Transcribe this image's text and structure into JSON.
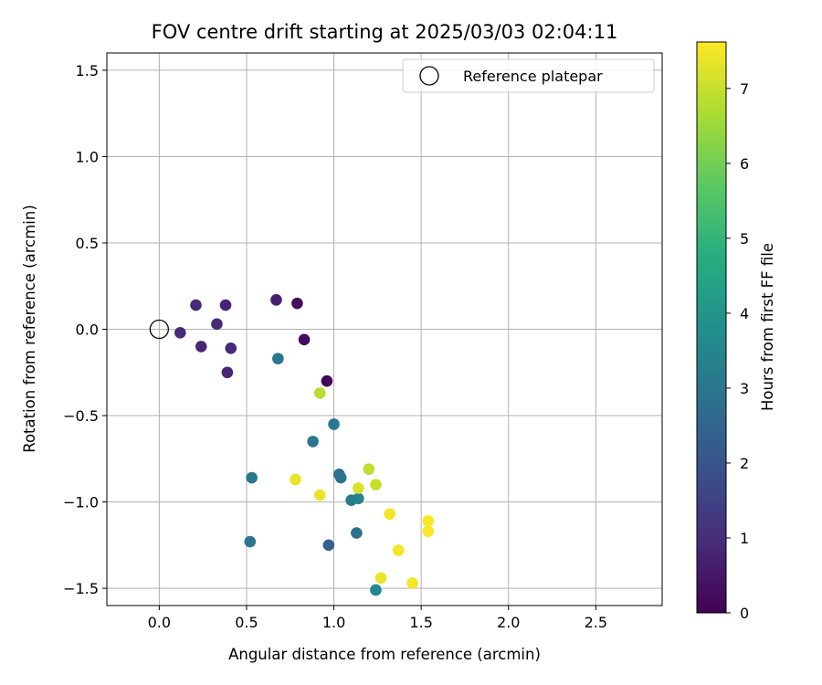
{
  "chart_data": {
    "type": "scatter",
    "title": "FOV centre drift starting at 2025/03/03 02:04:11",
    "xlabel": "Angular distance from reference (arcmin)",
    "ylabel": "Rotation from reference (arcmin)",
    "xlim": [
      -0.3,
      2.88
    ],
    "ylim": [
      -1.6,
      1.6
    ],
    "xticks": [
      0.0,
      0.5,
      1.0,
      1.5,
      2.0,
      2.5
    ],
    "xtick_labels": [
      "0.0",
      "0.5",
      "1.0",
      "1.5",
      "2.0",
      "2.5"
    ],
    "yticks": [
      1.5,
      1.0,
      0.5,
      0.0,
      -0.5,
      -1.0,
      -1.5
    ],
    "ytick_labels": [
      "1.5",
      "1.0",
      "0.5",
      "0.0",
      "−0.5",
      "−1.0",
      "−1.5"
    ],
    "grid": true,
    "legend": {
      "placement": "top-right",
      "entries": [
        "Reference platepar"
      ]
    },
    "reference_point": {
      "x": 0.0,
      "y": 0.0,
      "name": "Reference platepar"
    },
    "colorbar": {
      "label": "Hours from first FF file",
      "colormap": "viridis",
      "range": [
        0,
        7.62
      ],
      "ticks": [
        0,
        1,
        2,
        3,
        4,
        5,
        6,
        7
      ],
      "tick_labels": [
        "0",
        "1",
        "2",
        "3",
        "4",
        "5",
        "6",
        "7"
      ]
    },
    "points": [
      {
        "x": 0.12,
        "y": -0.02,
        "hours": 0.9
      },
      {
        "x": 0.21,
        "y": 0.14,
        "hours": 0.9
      },
      {
        "x": 0.24,
        "y": -0.1,
        "hours": 0.8
      },
      {
        "x": 0.33,
        "y": 0.03,
        "hours": 0.9
      },
      {
        "x": 0.38,
        "y": 0.14,
        "hours": 0.8
      },
      {
        "x": 0.39,
        "y": -0.25,
        "hours": 0.8
      },
      {
        "x": 0.41,
        "y": -0.11,
        "hours": 0.9
      },
      {
        "x": 0.67,
        "y": 0.17,
        "hours": 0.7
      },
      {
        "x": 0.79,
        "y": 0.15,
        "hours": 0.3
      },
      {
        "x": 0.83,
        "y": -0.06,
        "hours": 0.2
      },
      {
        "x": 0.96,
        "y": -0.3,
        "hours": 0.1
      },
      {
        "x": 0.68,
        "y": -0.17,
        "hours": 3.0
      },
      {
        "x": 0.92,
        "y": -0.37,
        "hours": 6.8
      },
      {
        "x": 1.0,
        "y": -0.55,
        "hours": 3.1
      },
      {
        "x": 0.88,
        "y": -0.65,
        "hours": 3.0
      },
      {
        "x": 0.53,
        "y": -0.86,
        "hours": 3.1
      },
      {
        "x": 0.78,
        "y": -0.87,
        "hours": 7.4
      },
      {
        "x": 0.92,
        "y": -0.96,
        "hours": 7.4
      },
      {
        "x": 1.03,
        "y": -0.84,
        "hours": 2.9
      },
      {
        "x": 1.04,
        "y": -0.86,
        "hours": 2.9
      },
      {
        "x": 1.1,
        "y": -0.99,
        "hours": 3.1
      },
      {
        "x": 1.14,
        "y": -0.98,
        "hours": 3.4
      },
      {
        "x": 1.14,
        "y": -0.92,
        "hours": 7.2
      },
      {
        "x": 1.2,
        "y": -0.81,
        "hours": 6.9
      },
      {
        "x": 1.24,
        "y": -0.9,
        "hours": 7.0
      },
      {
        "x": 1.32,
        "y": -1.07,
        "hours": 7.5
      },
      {
        "x": 1.13,
        "y": -1.18,
        "hours": 2.9
      },
      {
        "x": 0.52,
        "y": -1.23,
        "hours": 3.0
      },
      {
        "x": 0.97,
        "y": -1.25,
        "hours": 2.4
      },
      {
        "x": 1.37,
        "y": -1.28,
        "hours": 7.5
      },
      {
        "x": 1.54,
        "y": -1.11,
        "hours": 7.6
      },
      {
        "x": 1.54,
        "y": -1.17,
        "hours": 7.6
      },
      {
        "x": 1.27,
        "y": -1.44,
        "hours": 7.4
      },
      {
        "x": 1.45,
        "y": -1.47,
        "hours": 7.5
      },
      {
        "x": 1.24,
        "y": -1.51,
        "hours": 3.5
      }
    ]
  }
}
